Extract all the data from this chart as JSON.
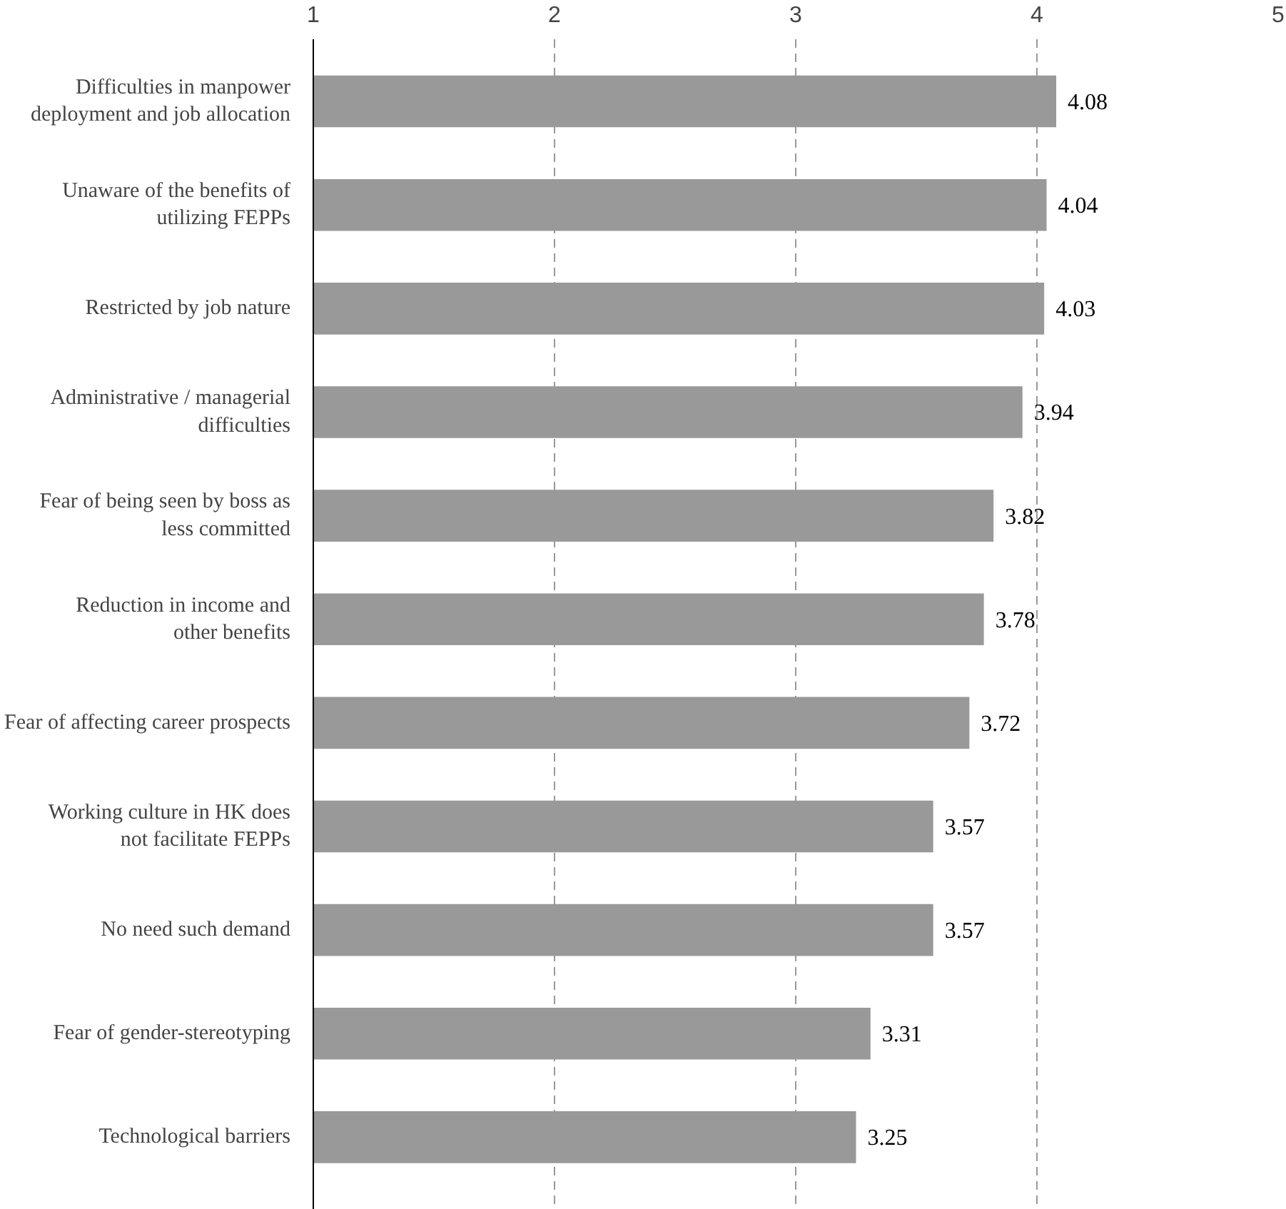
{
  "chart_data": {
    "type": "bar",
    "orientation": "horizontal",
    "categories": [
      "Difficulties in manpower\ndeployment and job allocation",
      "Unaware of the benefits of\nutilizing FEPPs",
      "Restricted by job nature",
      "Administrative / managerial\ndifficulties",
      "Fear of being seen by boss as\nless committed",
      "Reduction in income and\nother benefits",
      "Fear of affecting career prospects",
      "Working culture in HK does\nnot facilitate FEPPs",
      "No need such demand",
      "Fear of gender-stereotyping",
      "Technological barriers"
    ],
    "values": [
      4.08,
      4.04,
      4.03,
      3.94,
      3.82,
      3.78,
      3.72,
      3.57,
      3.57,
      3.31,
      3.25
    ],
    "color": "#999999",
    "data_labels": true,
    "xlim": [
      1,
      5
    ],
    "xticks": [
      1,
      2,
      3,
      4,
      5
    ],
    "grid": "x"
  }
}
